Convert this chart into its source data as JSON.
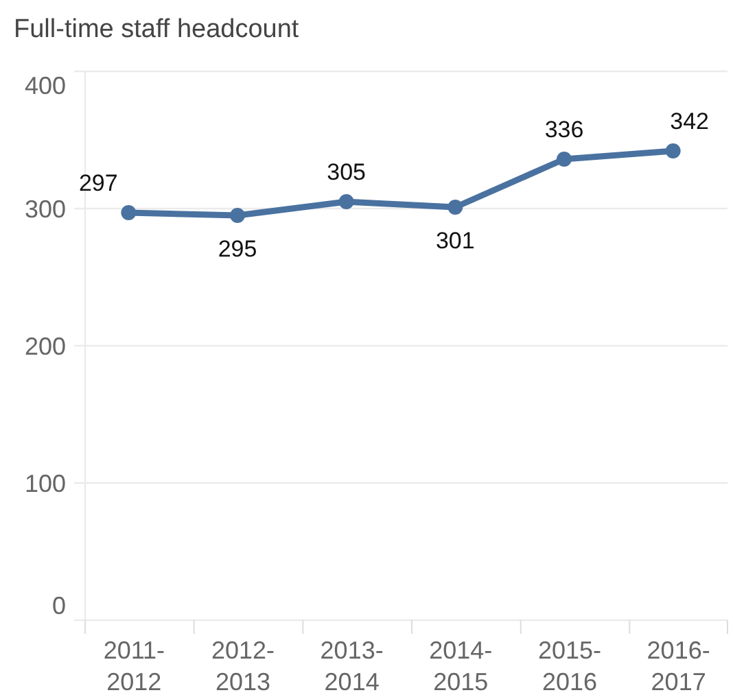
{
  "chart_data": {
    "type": "line",
    "title": "Full-time staff headcount",
    "categories": [
      "2011-2012",
      "2012-2013",
      "2013-2014",
      "2014-2015",
      "2015-2016",
      "2016-2017"
    ],
    "series": [
      {
        "color": "#4a72a0",
        "values": [
          297,
          295,
          305,
          301,
          336,
          342
        ]
      }
    ],
    "ylim": [
      0,
      400
    ],
    "yticks": [
      0,
      100,
      200,
      300,
      400
    ],
    "grid": "y",
    "marker": "circle",
    "data_labels": true
  }
}
